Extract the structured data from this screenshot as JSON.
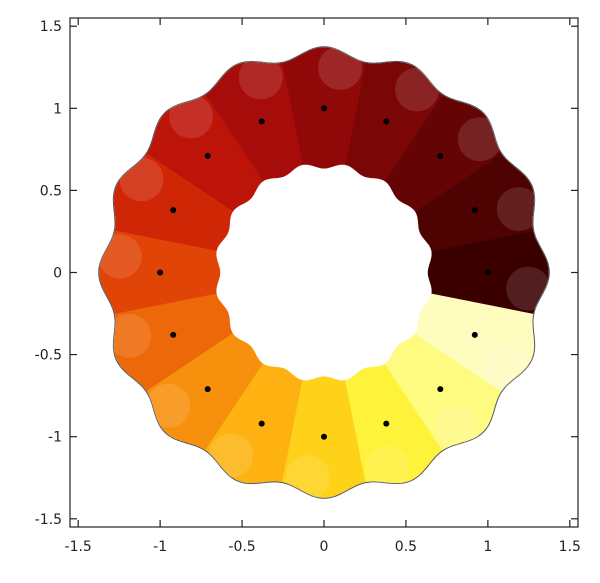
{
  "chart_data": {
    "type": "scatter",
    "title": "",
    "xlabel": "",
    "ylabel": "",
    "xlim": [
      -1.55,
      1.55
    ],
    "ylim": [
      -1.55,
      1.55
    ],
    "xticks": [
      {
        "value": -1.5,
        "label": "-1.5"
      },
      {
        "value": -1,
        "label": "-1"
      },
      {
        "value": -0.5,
        "label": "-0.5"
      },
      {
        "value": 0,
        "label": "0"
      },
      {
        "value": 0.5,
        "label": "0.5"
      },
      {
        "value": 1,
        "label": "1"
      },
      {
        "value": 1.5,
        "label": "1.5"
      }
    ],
    "yticks": [
      {
        "value": 1.5,
        "label": "1.5"
      },
      {
        "value": 1,
        "label": "1"
      },
      {
        "value": 0.5,
        "label": "0.5"
      },
      {
        "value": 0,
        "label": "0"
      },
      {
        "value": -0.5,
        "label": "-0.5"
      },
      {
        "value": -1,
        "label": "-1"
      },
      {
        "value": -1.5,
        "label": "-1.5"
      }
    ],
    "grid": false,
    "region": {
      "inner_radius": 0.66,
      "outer_radius": 1.33,
      "inner_lobes": 16,
      "outer_lobes": 16,
      "sector_count": 16,
      "sector_colors": [
        "#3a0000",
        "#4f0202",
        "#650404",
        "#7a0606",
        "#900808",
        "#a60c0a",
        "#bc1408",
        "#cf2606",
        "#e04406",
        "#ec6808",
        "#f7900c",
        "#fdb212",
        "#ffd21a",
        "#fff23a",
        "#fffa80",
        "#fffcc0"
      ]
    },
    "points": {
      "x": [
        1.0,
        0.92,
        0.71,
        0.38,
        0.0,
        -0.38,
        -0.71,
        -0.92,
        -1.0,
        -0.92,
        -0.71,
        -0.38,
        0.0,
        0.38,
        0.71,
        0.92
      ],
      "y": [
        0.0,
        0.38,
        0.71,
        0.92,
        1.0,
        0.92,
        0.71,
        0.38,
        0.0,
        -0.38,
        -0.71,
        -0.92,
        -1.0,
        -0.92,
        -0.71,
        -0.38
      ],
      "color": "#000000"
    }
  }
}
